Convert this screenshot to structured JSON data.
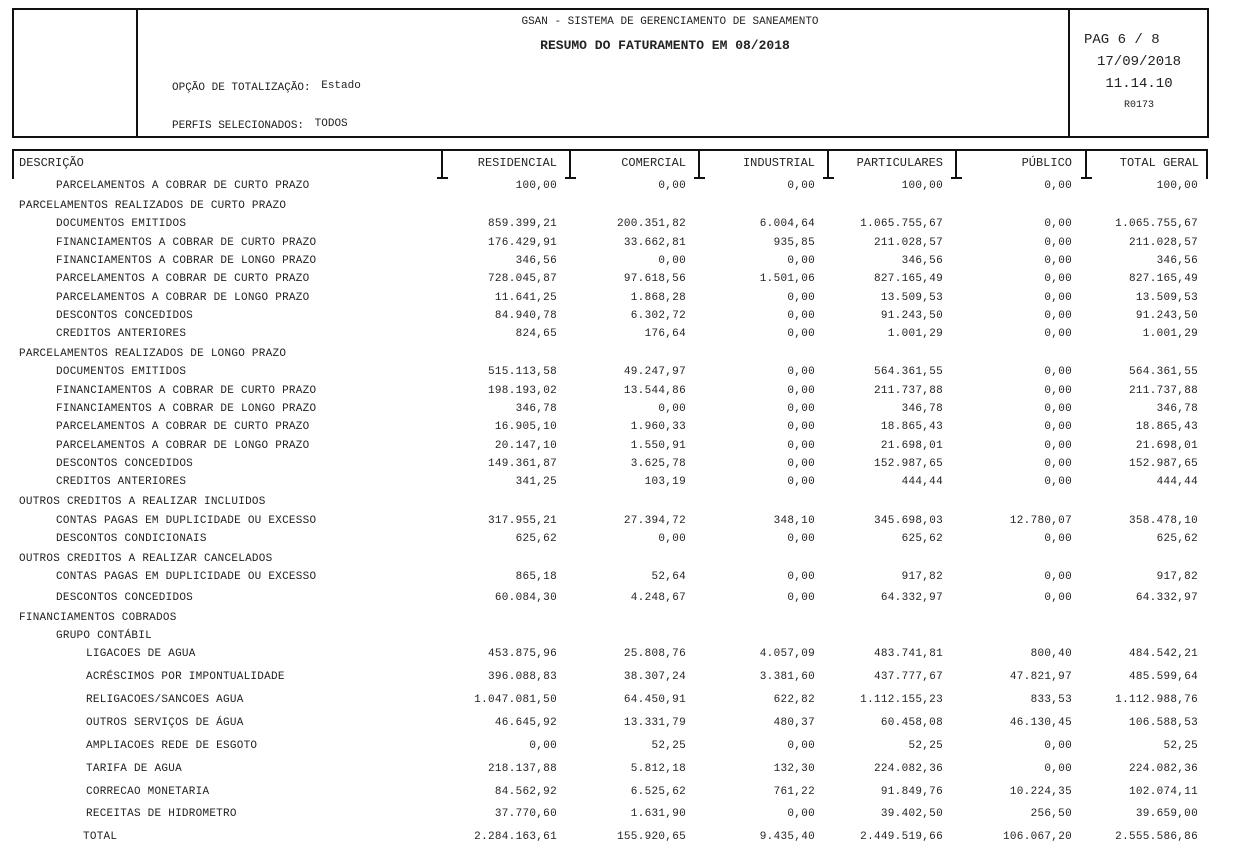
{
  "header": {
    "system_name": "GSAN - SISTEMA DE GERENCIAMENTO DE SANEAMENTO",
    "report_title": "RESUMO DO FATURAMENTO EM 08/2018",
    "totalization_label": "OPÇÃO DE TOTALIZAÇÃO:",
    "totalization_value": "Estado",
    "profiles_label": "PERFIS SELECIONADOS:",
    "profiles_value": "TODOS",
    "page": "PAG 6 / 8",
    "date": "17/09/2018",
    "time": "11.14.10",
    "report_code": "R0173"
  },
  "columns": [
    "DESCRIÇÃO",
    "RESIDENCIAL",
    "COMERCIAL",
    "INDUSTRIAL",
    "PARTICULARES",
    "PÚBLICO",
    "TOTAL GERAL"
  ],
  "rows": [
    {
      "label": "PARCELAMENTOS A COBRAR DE CURTO PRAZO",
      "level": 1,
      "values": [
        "100,00",
        "0,00",
        "0,00",
        "100,00",
        "0,00",
        "100,00"
      ]
    },
    {
      "label": "PARCELAMENTOS REALIZADOS DE CURTO PRAZO",
      "level": 0,
      "values": []
    },
    {
      "label": "DOCUMENTOS EMITIDOS",
      "level": 1,
      "values": [
        "859.399,21",
        "200.351,82",
        "6.004,64",
        "1.065.755,67",
        "0,00",
        "1.065.755,67"
      ]
    },
    {
      "label": "FINANCIAMENTOS A COBRAR DE CURTO PRAZO",
      "level": 1,
      "values": [
        "176.429,91",
        "33.662,81",
        "935,85",
        "211.028,57",
        "0,00",
        "211.028,57"
      ]
    },
    {
      "label": "FINANCIAMENTOS A COBRAR DE LONGO PRAZO",
      "level": 1,
      "values": [
        "346,56",
        "0,00",
        "0,00",
        "346,56",
        "0,00",
        "346,56"
      ]
    },
    {
      "label": "PARCELAMENTOS A COBRAR DE CURTO PRAZO",
      "level": 1,
      "values": [
        "728.045,87",
        "97.618,56",
        "1.501,06",
        "827.165,49",
        "0,00",
        "827.165,49"
      ]
    },
    {
      "label": "PARCELAMENTOS A COBRAR DE LONGO PRAZO",
      "level": 1,
      "values": [
        "11.641,25",
        "1.868,28",
        "0,00",
        "13.509,53",
        "0,00",
        "13.509,53"
      ]
    },
    {
      "label": "DESCONTOS CONCEDIDOS",
      "level": 1,
      "values": [
        "84.940,78",
        "6.302,72",
        "0,00",
        "91.243,50",
        "0,00",
        "91.243,50"
      ]
    },
    {
      "label": "CREDITOS ANTERIORES",
      "level": 1,
      "values": [
        "824,65",
        "176,64",
        "0,00",
        "1.001,29",
        "0,00",
        "1.001,29"
      ]
    },
    {
      "label": "PARCELAMENTOS REALIZADOS DE LONGO PRAZO",
      "level": 0,
      "values": []
    },
    {
      "label": "DOCUMENTOS EMITIDOS",
      "level": 1,
      "values": [
        "515.113,58",
        "49.247,97",
        "0,00",
        "564.361,55",
        "0,00",
        "564.361,55"
      ]
    },
    {
      "label": "FINANCIAMENTOS A COBRAR DE CURTO PRAZO",
      "level": 1,
      "values": [
        "198.193,02",
        "13.544,86",
        "0,00",
        "211.737,88",
        "0,00",
        "211.737,88"
      ]
    },
    {
      "label": "FINANCIAMENTOS A COBRAR DE LONGO PRAZO",
      "level": 1,
      "values": [
        "346,78",
        "0,00",
        "0,00",
        "346,78",
        "0,00",
        "346,78"
      ]
    },
    {
      "label": "PARCELAMENTOS A COBRAR DE CURTO PRAZO",
      "level": 1,
      "values": [
        "16.905,10",
        "1.960,33",
        "0,00",
        "18.865,43",
        "0,00",
        "18.865,43"
      ]
    },
    {
      "label": "PARCELAMENTOS A COBRAR DE LONGO PRAZO",
      "level": 1,
      "values": [
        "20.147,10",
        "1.550,91",
        "0,00",
        "21.698,01",
        "0,00",
        "21.698,01"
      ]
    },
    {
      "label": "DESCONTOS CONCEDIDOS",
      "level": 1,
      "values": [
        "149.361,87",
        "3.625,78",
        "0,00",
        "152.987,65",
        "0,00",
        "152.987,65"
      ]
    },
    {
      "label": "CREDITOS ANTERIORES",
      "level": 1,
      "values": [
        "341,25",
        "103,19",
        "0,00",
        "444,44",
        "0,00",
        "444,44"
      ]
    },
    {
      "label": "OUTROS CREDITOS A REALIZAR INCLUIDOS",
      "level": 0,
      "values": []
    },
    {
      "label": "CONTAS PAGAS EM DUPLICIDADE OU EXCESSO",
      "level": 1,
      "values": [
        "317.955,21",
        "27.394,72",
        "348,10",
        "345.698,03",
        "12.780,07",
        "358.478,10"
      ]
    },
    {
      "label": "DESCONTOS CONDICIONAIS",
      "level": 1,
      "values": [
        "625,62",
        "0,00",
        "0,00",
        "625,62",
        "0,00",
        "625,62"
      ]
    },
    {
      "label": "OUTROS CREDITOS A REALIZAR CANCELADOS",
      "level": 0,
      "values": []
    },
    {
      "label": "CONTAS PAGAS EM DUPLICIDADE OU EXCESSO",
      "level": 1,
      "values": [
        "865,18",
        "52,64",
        "0,00",
        "917,82",
        "0,00",
        "917,82"
      ]
    },
    {
      "label": "DESCONTOS CONCEDIDOS",
      "level": 1,
      "values": [
        "60.084,30",
        "4.248,67",
        "0,00",
        "64.332,97",
        "0,00",
        "64.332,97"
      ]
    },
    {
      "label": "FINANCIAMENTOS COBRADOS",
      "level": 0,
      "values": []
    },
    {
      "label": "GRUPO CONTÁBIL",
      "level": 1,
      "values": []
    },
    {
      "label": "LIGACOES DE AGUA",
      "level": 2,
      "values": [
        "453.875,96",
        "25.808,76",
        "4.057,09",
        "483.741,81",
        "800,40",
        "484.542,21"
      ]
    },
    {
      "label": "ACRÉSCIMOS POR IMPONTUALIDADE",
      "level": 2,
      "values": [
        "396.088,83",
        "38.307,24",
        "3.381,60",
        "437.777,67",
        "47.821,97",
        "485.599,64"
      ]
    },
    {
      "label": "RELIGACOES/SANCOES AGUA",
      "level": 2,
      "values": [
        "1.047.081,50",
        "64.450,91",
        "622,82",
        "1.112.155,23",
        "833,53",
        "1.112.988,76"
      ]
    },
    {
      "label": "OUTROS SERVIÇOS DE ÁGUA",
      "level": 2,
      "values": [
        "46.645,92",
        "13.331,79",
        "480,37",
        "60.458,08",
        "46.130,45",
        "106.588,53"
      ]
    },
    {
      "label": "AMPLIACOES REDE DE ESGOTO",
      "level": 2,
      "values": [
        "0,00",
        "52,25",
        "0,00",
        "52,25",
        "0,00",
        "52,25"
      ]
    },
    {
      "label": "TARIFA DE AGUA",
      "level": 2,
      "values": [
        "218.137,88",
        "5.812,18",
        "132,30",
        "224.082,36",
        "0,00",
        "224.082,36"
      ]
    },
    {
      "label": "CORRECAO MONETARIA",
      "level": 2,
      "values": [
        "84.562,92",
        "6.525,62",
        "761,22",
        "91.849,76",
        "10.224,35",
        "102.074,11"
      ]
    },
    {
      "label": "RECEITAS DE HIDROMETRO",
      "level": 2,
      "values": [
        "37.770,60",
        "1.631,90",
        "0,00",
        "39.402,50",
        "256,50",
        "39.659,00"
      ]
    },
    {
      "label": "TOTAL",
      "level": 3,
      "values": [
        "2.284.163,61",
        "155.920,65",
        "9.435,40",
        "2.449.519,66",
        "106.067,20",
        "2.555.586,86"
      ]
    }
  ]
}
